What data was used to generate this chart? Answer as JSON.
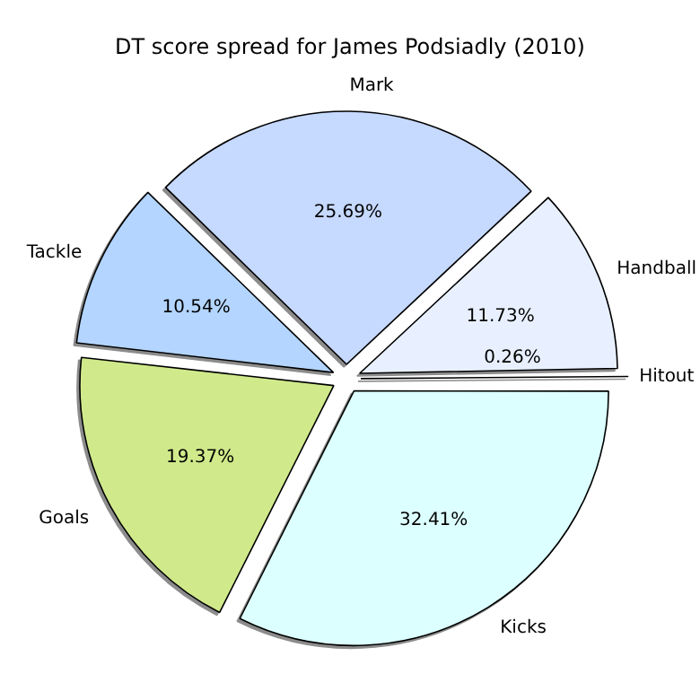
{
  "chart_data": {
    "type": "pie",
    "title": "DT score spread for James Podsiadly (2010)",
    "categories": [
      "Kicks",
      "Goals",
      "Tackle",
      "Mark",
      "Handball",
      "Hitout"
    ],
    "values": [
      32.41,
      19.37,
      10.54,
      25.69,
      11.73,
      0.26
    ],
    "colors": [
      "#dcffff",
      "#d0ea8b",
      "#b3d5ff",
      "#c6d9ff",
      "#e8f0ff",
      "#eeeeee"
    ],
    "value_labels": [
      "32.41%",
      "19.37%",
      "10.54%",
      "25.69%",
      "11.73%",
      "0.26%"
    ],
    "legend": false
  }
}
